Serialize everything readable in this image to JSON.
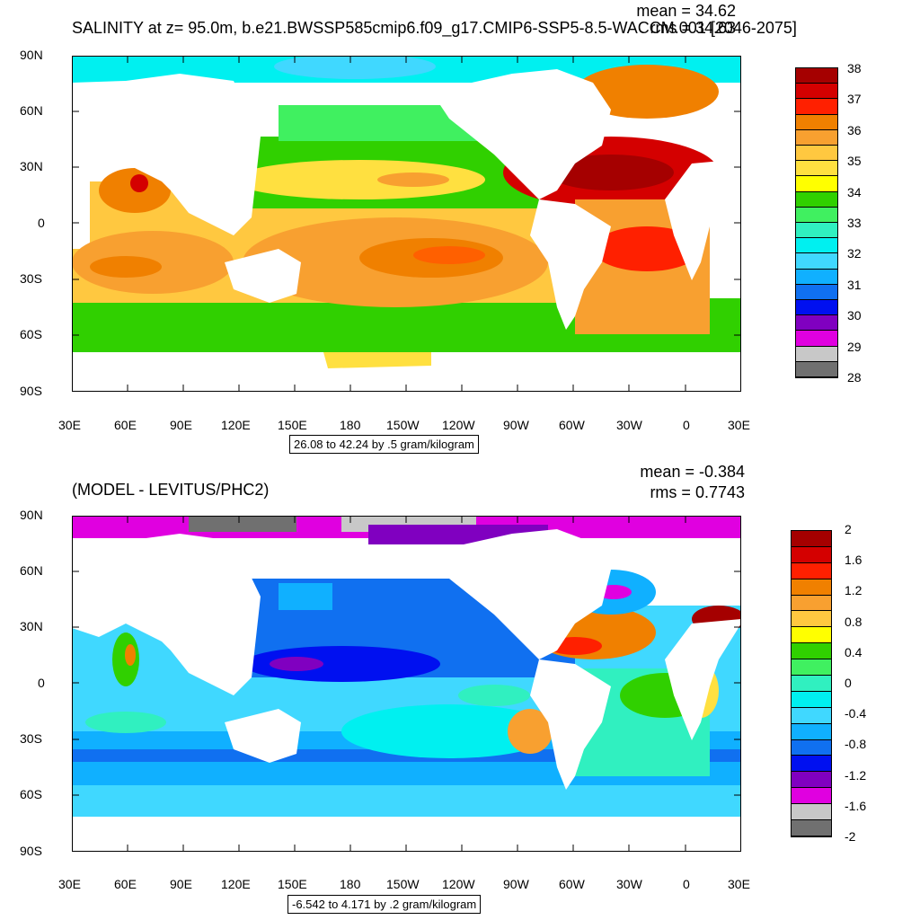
{
  "top_panel": {
    "title": "SALINITY at z=  95.0m, b.e21.BWSSP585cmip6.f09_g17.CMIP6-SSP5-8.5-WACCM.001 [2046-2075]",
    "mean_text": "mean = 34.62",
    "rms_text": "rms = 34.63",
    "info_box": "26.08 to 42.24 by .5 gram/kilogram",
    "colorbar": {
      "labels": [
        "38",
        "37",
        "36",
        "35",
        "34",
        "33",
        "32",
        "31",
        "30",
        "29",
        "28"
      ],
      "colors": [
        "#a50000",
        "#d40000",
        "#ff2000",
        "#f08000",
        "#f8a030",
        "#ffc840",
        "#ffe040",
        "#ffff00",
        "#30d000",
        "#40f060",
        "#30f0c0",
        "#00f0f0",
        "#40d8ff",
        "#10b0ff",
        "#1070f0",
        "#0010f0",
        "#8000c0",
        "#e000e0",
        "#c8c8c8",
        "#707070"
      ]
    }
  },
  "bottom_panel": {
    "title": "(MODEL - LEVITUS/PHC2)",
    "mean_text": "mean = -0.384",
    "rms_text": "rms = 0.7743",
    "info_box": "-6.542 to 4.171 by .2 gram/kilogram",
    "colorbar": {
      "labels": [
        "2",
        "1.6",
        "1.2",
        "0.8",
        "0.4",
        "0",
        "-0.4",
        "-0.8",
        "-1.2",
        "-1.6",
        "-2"
      ],
      "colors": [
        "#a50000",
        "#d40000",
        "#ff2000",
        "#f08000",
        "#f8a030",
        "#ffc840",
        "#ffff00",
        "#30d000",
        "#40f060",
        "#30f0c0",
        "#00f0f0",
        "#40d8ff",
        "#10b0ff",
        "#1070f0",
        "#0010f0",
        "#8000c0",
        "#e000e0",
        "#c8c8c8",
        "#707070"
      ]
    }
  },
  "axes": {
    "lat_labels": [
      "90N",
      "60N",
      "30N",
      "0",
      "30S",
      "60S",
      "90S"
    ],
    "lon_labels": [
      "30E",
      "60E",
      "90E",
      "120E",
      "150E",
      "180",
      "150W",
      "120W",
      "90W",
      "60W",
      "30W",
      "0",
      "30E"
    ]
  }
}
